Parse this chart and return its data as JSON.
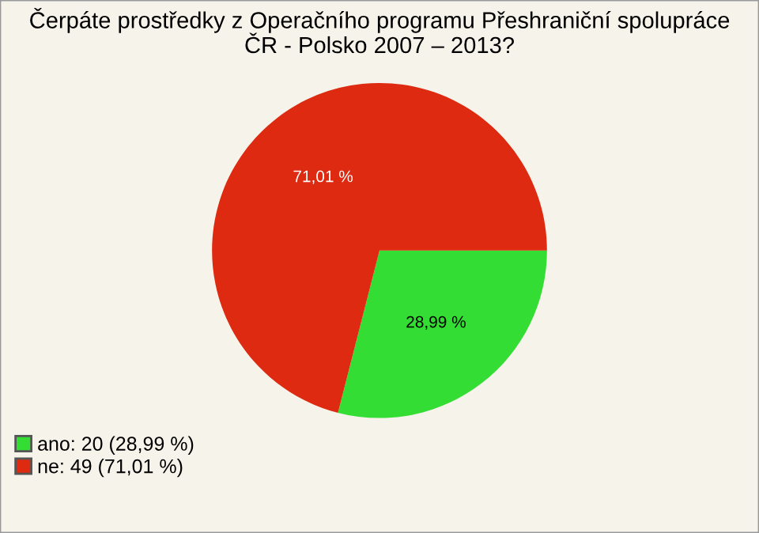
{
  "chart_data": {
    "type": "pie",
    "title": "Čerpáte prostředky z Operačního programu Přeshraniční spolupráce\nČR - Polsko 2007 – 2013?",
    "categories": [
      "ano: 20 (28,99 %)",
      "ne: 49 (71,01 %)"
    ],
    "values": [
      28.99,
      71.01
    ],
    "colors": [
      "#33dd33",
      "#dd2a10"
    ],
    "value_labels": [
      "28,99 %",
      "71,01 %"
    ],
    "legend": "bottom left"
  }
}
